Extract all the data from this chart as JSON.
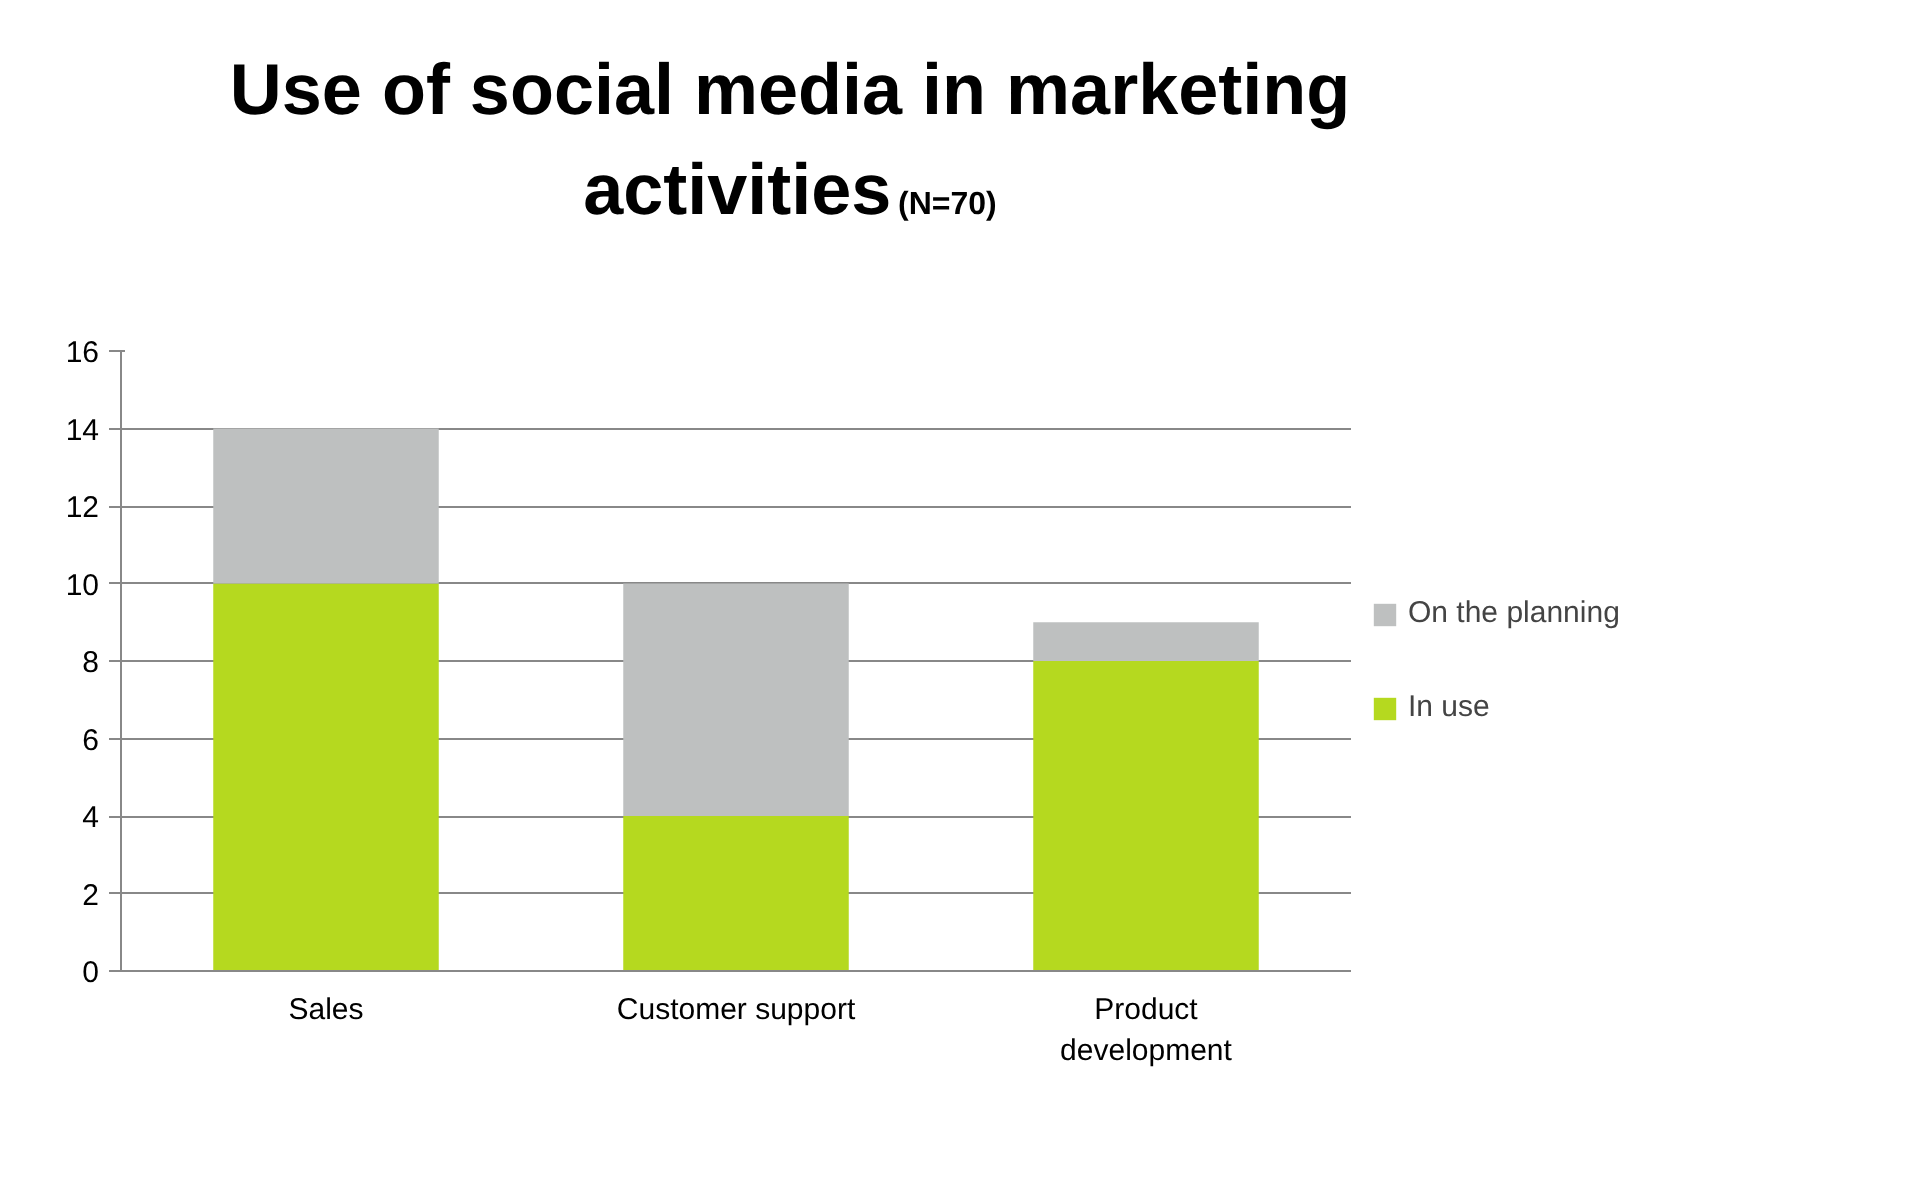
{
  "chart_data": {
    "type": "bar",
    "title": "Use of social media in marketing activities",
    "subtitle": "(N=70)",
    "categories": [
      "Sales",
      "Customer support",
      "Product development"
    ],
    "stacked": true,
    "series": [
      {
        "name": "In use",
        "color": "#b5d91f",
        "values": [
          10,
          4,
          8
        ]
      },
      {
        "name": "On the planning",
        "color": "#bec0c0",
        "values": [
          4,
          6,
          1
        ]
      }
    ],
    "ylim": [
      0,
      16
    ],
    "yticks": [
      0,
      2,
      4,
      6,
      8,
      10,
      12,
      14,
      16
    ],
    "grid": "y",
    "legend": "right"
  }
}
